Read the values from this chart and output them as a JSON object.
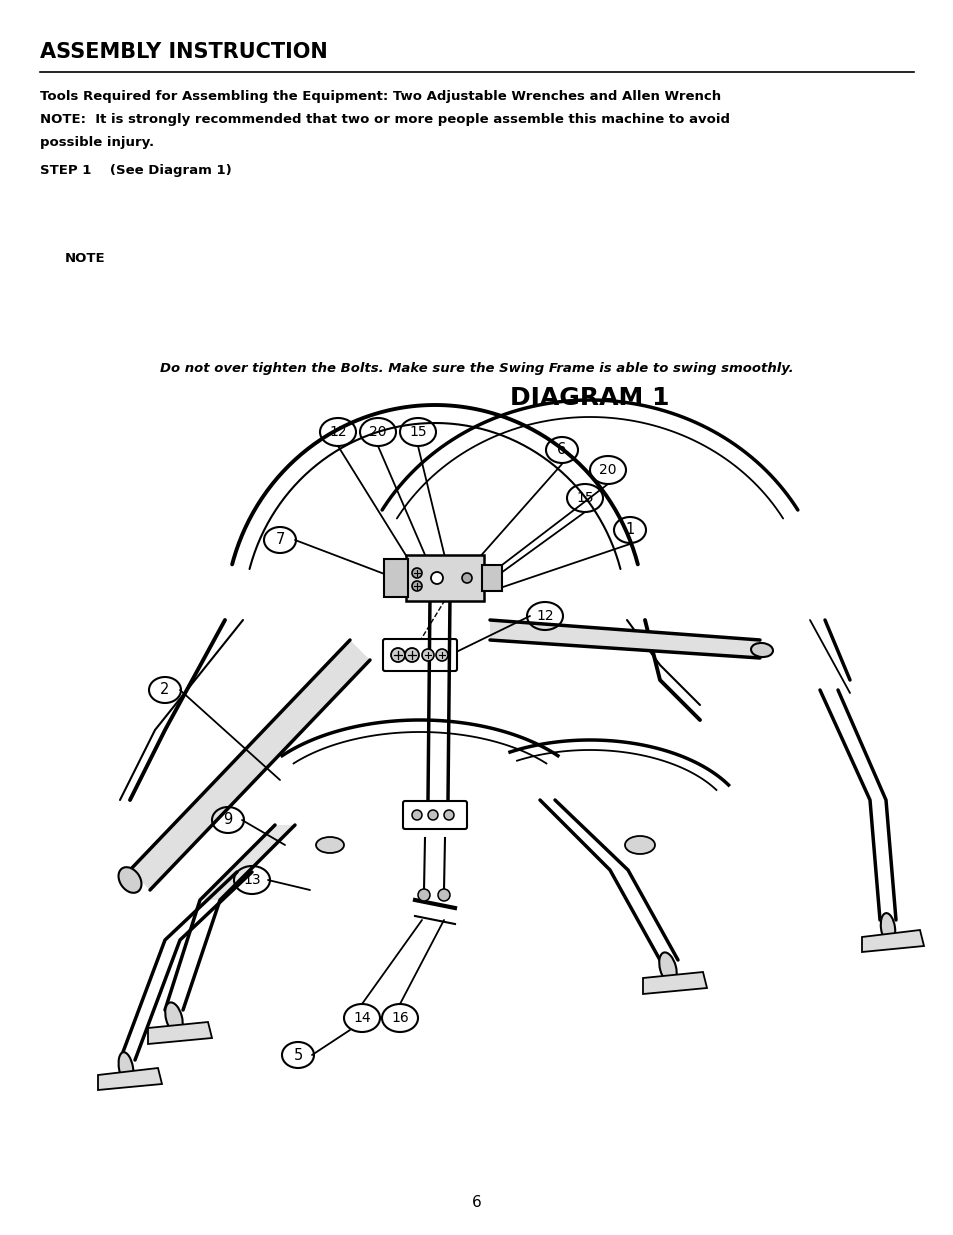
{
  "title": "ASSEMBLY INSTRUCTION",
  "tools_line1": "Tools Required for Assembling the Equipment: Two Adjustable Wrenches and Allen Wrench",
  "tools_line2": "NOTE:  It is strongly recommended that two or more people assemble this machine to avoid",
  "tools_line3": "possible injury.",
  "step_text": "STEP 1    (See Diagram 1)",
  "note_text": "NOTE",
  "note_detail": "Do not over tighten the Bolts. Make sure the Swing Frame is able to swing smoothly.",
  "diagram_title": "DIAGRAM 1",
  "page_number": "6",
  "bg_color": "#ffffff",
  "text_color": "#000000",
  "fig_width": 9.54,
  "fig_height": 12.35,
  "dpi": 100
}
